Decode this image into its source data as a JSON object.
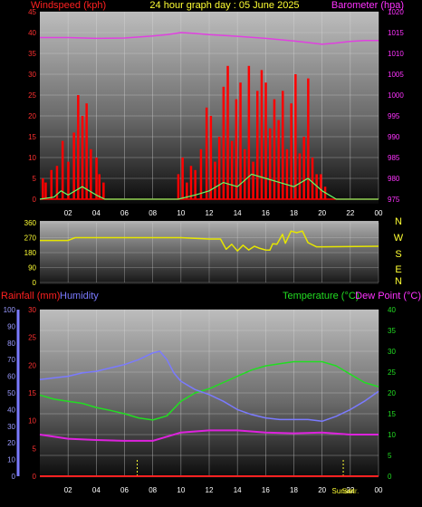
{
  "header": {
    "left_label": "Windspeed (kph)",
    "title": "24 hour graph day : 05 June 2025",
    "right_label": "Barometer (hpa)"
  },
  "middle": {
    "compass": [
      "N",
      "W",
      "S",
      "E",
      "N"
    ]
  },
  "bottom_header": {
    "rain_label": "Rainfall (mm)",
    "humidity_label": "Humidity",
    "temp_label": "Temperature (°C)",
    "dew_label": "Dew Point (°C)"
  },
  "sun_labels": {
    "sunset": "Sunset",
    "sunrise": "Sunr."
  },
  "colors": {
    "wind": "#ff0000",
    "gust": "#ff0000",
    "avg_wind": "#66ff66",
    "barometer": "#e040e0",
    "direction": "#e6e600",
    "humidity": "#7a7aff",
    "temperature": "#22dd22",
    "dew_point": "#dd22dd",
    "rainfall": "#ff2222"
  },
  "chart_data": [
    {
      "type": "line",
      "name": "wind-barometer",
      "x_ticks": [
        "02",
        "04",
        "06",
        "08",
        "10",
        "12",
        "14",
        "16",
        "18",
        "20",
        "22",
        "00"
      ],
      "x_range": [
        0,
        24
      ],
      "left_axis": {
        "label": "Windspeed (kph)",
        "range": [
          0,
          45
        ],
        "ticks": [
          0,
          5,
          10,
          15,
          20,
          25,
          30,
          35,
          40,
          45
        ]
      },
      "right_axis": {
        "label": "Barometer (hpa)",
        "range": [
          975,
          1020
        ],
        "ticks": [
          975,
          980,
          985,
          990,
          995,
          1000,
          1005,
          1010,
          1015,
          1020
        ]
      },
      "barometer": {
        "hours": [
          0,
          2,
          4,
          6,
          8,
          9,
          10,
          11,
          12,
          14,
          16,
          18,
          19,
          20,
          21,
          22,
          23,
          24
        ],
        "hpa": [
          1013.8,
          1013.8,
          1013.6,
          1013.7,
          1014.2,
          1014.5,
          1015.0,
          1014.8,
          1014.5,
          1014.1,
          1013.6,
          1013.0,
          1012.6,
          1012.2,
          1012.5,
          1012.9,
          1013.1,
          1013.1
        ]
      },
      "wind_gusts": {
        "hours": [
          0.2,
          0.4,
          0.8,
          1.2,
          1.6,
          2.0,
          2.4,
          2.7,
          3.0,
          3.3,
          3.6,
          4.0,
          4.2,
          4.5,
          9.8,
          10.1,
          10.4,
          10.7,
          11.0,
          11.4,
          11.8,
          12.1,
          12.4,
          12.7,
          13.0,
          13.3,
          13.6,
          13.9,
          14.2,
          14.5,
          14.8,
          15.1,
          15.4,
          15.7,
          16.0,
          16.3,
          16.6,
          16.9,
          17.2,
          17.5,
          17.8,
          18.1,
          18.4,
          18.7,
          19.0,
          19.3,
          19.6,
          19.9,
          20.2
        ],
        "kph": [
          5,
          4,
          7,
          8,
          14,
          9,
          16,
          25,
          20,
          23,
          12,
          10,
          6,
          4,
          6,
          10,
          4,
          8,
          7,
          12,
          22,
          20,
          9,
          15,
          27,
          32,
          14,
          24,
          28,
          12,
          32,
          9,
          26,
          31,
          28,
          17,
          24,
          19,
          26,
          12,
          23,
          30,
          11,
          15,
          29,
          10,
          6,
          6,
          3
        ]
      },
      "wind_avg": {
        "hours": [
          0,
          1,
          1.5,
          2,
          3,
          4,
          4.6,
          9.8,
          11,
          12,
          13,
          14,
          15,
          16,
          17,
          18,
          19,
          20,
          21,
          24
        ],
        "kph": [
          0,
          0.5,
          2,
          1,
          3,
          1,
          0,
          0,
          1,
          2,
          4,
          3,
          6,
          5,
          4,
          3,
          5,
          2,
          0,
          0
        ]
      }
    },
    {
      "type": "line",
      "name": "wind-direction",
      "x_range": [
        0,
        24
      ],
      "y_axis": {
        "range": [
          0,
          360
        ],
        "ticks": [
          0,
          90,
          180,
          270,
          360
        ]
      },
      "direction": {
        "hours": [
          0,
          2,
          2.5,
          10,
          12,
          12.8,
          13.2,
          13.6,
          14.0,
          14.4,
          14.8,
          15.2,
          15.6,
          16.0,
          16.3,
          16.5,
          16.8,
          17.2,
          17.4,
          17.8,
          18.2,
          18.6,
          19.0,
          19.6,
          20,
          24
        ],
        "degrees": [
          253,
          253,
          270,
          270,
          262,
          262,
          200,
          230,
          190,
          225,
          196,
          218,
          205,
          196,
          195,
          233,
          230,
          290,
          236,
          310,
          300,
          310,
          240,
          215,
          215,
          218
        ]
      }
    },
    {
      "type": "line",
      "name": "temperature-humidity-rain",
      "x_ticks": [
        "02",
        "04",
        "06",
        "08",
        "10",
        "12",
        "14",
        "16",
        "18",
        "20",
        "22",
        "00"
      ],
      "x_range": [
        0,
        24
      ],
      "humidity_axis": {
        "label": "Humidity",
        "range": [
          0,
          100
        ],
        "ticks": [
          0,
          10,
          20,
          30,
          40,
          50,
          60,
          70,
          80,
          90,
          100
        ]
      },
      "rain_axis": {
        "label": "Rainfall (mm)",
        "range": [
          0,
          30
        ],
        "ticks": [
          0,
          5,
          10,
          15,
          20,
          25,
          30
        ]
      },
      "temp_axis": {
        "label": "Temperature (°C)",
        "range": [
          0,
          40
        ],
        "ticks": [
          0,
          5,
          10,
          15,
          20,
          25,
          30,
          35,
          40
        ]
      },
      "humidity": {
        "hours": [
          0,
          1,
          2,
          3,
          4,
          5,
          6,
          7,
          8,
          8.5,
          9,
          9.5,
          10,
          11,
          12,
          13,
          14,
          15,
          16,
          17,
          18,
          19,
          20,
          21,
          22,
          23,
          24
        ],
        "percent": [
          58,
          59,
          60,
          62,
          63,
          65,
          67,
          70,
          74,
          75,
          70,
          62,
          57,
          52,
          49,
          45,
          40,
          37,
          35,
          34,
          34,
          34,
          33,
          36,
          40,
          45,
          51
        ]
      },
      "temperature": {
        "hours": [
          0,
          1,
          2,
          3,
          4,
          5,
          6,
          7,
          8,
          9,
          10,
          11,
          12,
          13,
          14,
          15,
          16,
          17,
          18,
          19,
          20,
          21,
          22,
          23,
          24
        ],
        "celsius": [
          19.5,
          18.5,
          18.0,
          17.5,
          16.5,
          15.8,
          15.0,
          14.0,
          13.5,
          14.5,
          18.0,
          20.0,
          21.0,
          22.5,
          24.0,
          25.5,
          26.5,
          27.0,
          27.5,
          27.5,
          27.5,
          26.5,
          24.5,
          22.5,
          21.5
        ]
      },
      "dew_point": {
        "hours": [
          0,
          2,
          4,
          6,
          8,
          9,
          10,
          12,
          14,
          16,
          18,
          20,
          22,
          24
        ],
        "celsius": [
          10.0,
          9.0,
          8.7,
          8.5,
          8.5,
          9.5,
          10.5,
          11.0,
          11.0,
          10.5,
          10.3,
          10.5,
          10.0,
          10.0
        ]
      },
      "rainfall": {
        "hours": [
          0,
          24
        ],
        "mm": [
          0,
          0
        ]
      },
      "sun_markers_hours": [
        6.9,
        21.5
      ]
    }
  ]
}
